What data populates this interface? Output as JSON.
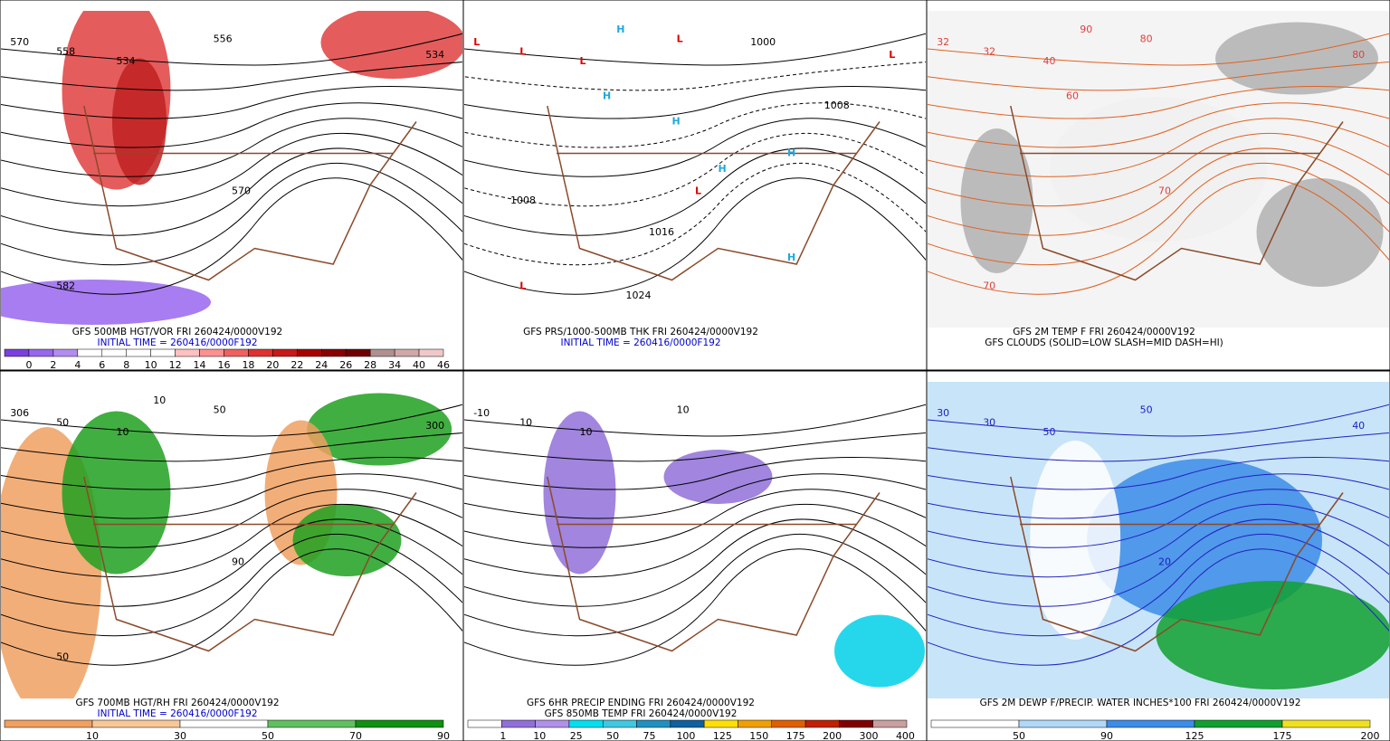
{
  "panels": [
    {
      "captions": [
        "GFS 500MB HGT/VOR FRI 260424/0000V192",
        "INITIAL TIME = 260416/0000F192"
      ],
      "map_labels": [
        "570",
        "558",
        "534",
        "556",
        "534",
        "570",
        "582"
      ],
      "colorbar": {
        "colors": [
          "#7b3fe0",
          "#9966ee",
          "#b38cf0",
          "#ffffff",
          "#ffffff",
          "#ffffff",
          "#ffffff",
          "#ffc0c0",
          "#ff9090",
          "#f06060",
          "#e03030",
          "#c81818",
          "#a80000",
          "#880000",
          "#700000",
          "#b09090",
          "#d0a8a8",
          "#f0c8c8"
        ],
        "labels": [
          "0",
          "2",
          "4",
          "6",
          "8",
          "10",
          "12",
          "14",
          "16",
          "18",
          "20",
          "22",
          "24",
          "26",
          "28",
          "34",
          "40",
          "46"
        ]
      }
    },
    {
      "captions": [
        "GFS PRS/1000-500MB THK FRI 260424/0000V192",
        "INITIAL TIME = 260416/0000F192"
      ],
      "map_labels": [
        "L",
        "L",
        "L",
        "L",
        "L",
        "L",
        "L",
        "H",
        "H",
        "H",
        "H",
        "H",
        "H",
        "1008",
        "1024",
        "1008",
        "1016",
        "1000"
      ]
    },
    {
      "captions": [
        "GFS 2M TEMP F FRI 260424/0000V192",
        "GFS CLOUDS (SOLID=LOW SLASH=MID DASH=HI)"
      ],
      "map_labels": [
        "32",
        "32",
        "40",
        "80",
        "80",
        "70",
        "70",
        "90",
        "60"
      ]
    },
    {
      "captions": [
        "GFS 700MB HGT/RH FRI 260424/0000V192",
        "INITIAL TIME = 260416/0000F192"
      ],
      "map_labels": [
        "306",
        "50",
        "10",
        "50",
        "300",
        "90",
        "50",
        "10"
      ],
      "colorbar": {
        "colors": [
          "#f0a060",
          "#f8c898",
          "#ffffff",
          "#60c060",
          "#109010"
        ],
        "labels": [
          "10",
          "30",
          "50",
          "70",
          "90"
        ]
      }
    },
    {
      "captions": [
        "GFS 6HR PRECIP ENDING FRI 260424/0000V192",
        "GFS 850MB TEMP FRI 260424/0000V192"
      ],
      "map_labels": [
        "-10",
        "10",
        "10",
        "10"
      ],
      "colorbar": {
        "colors": [
          "#ffffff",
          "#9070d8",
          "#b090e8",
          "#00e0f0",
          "#40c8e0",
          "#2090c0",
          "#1060a0",
          "#ffe000",
          "#f0a000",
          "#e06000",
          "#c02000",
          "#800000",
          "#c8a0a0"
        ],
        "labels": [
          "1",
          "10",
          "25",
          "50",
          "75",
          "100",
          "125",
          "150",
          "175",
          "200",
          "300",
          "400"
        ]
      }
    },
    {
      "captions": [
        "GFS 2M DEWP F/PRECIP. WATER INCHES*100 FRI 260424/0000V192"
      ],
      "map_labels": [
        "30",
        "30",
        "50",
        "50",
        "40",
        "20"
      ],
      "colorbar": {
        "colors": [
          "#ffffff",
          "#b0d8f8",
          "#3c8ce8",
          "#10a030",
          "#f0e020"
        ],
        "labels": [
          "50",
          "90",
          "125",
          "175",
          "200"
        ]
      }
    }
  ]
}
